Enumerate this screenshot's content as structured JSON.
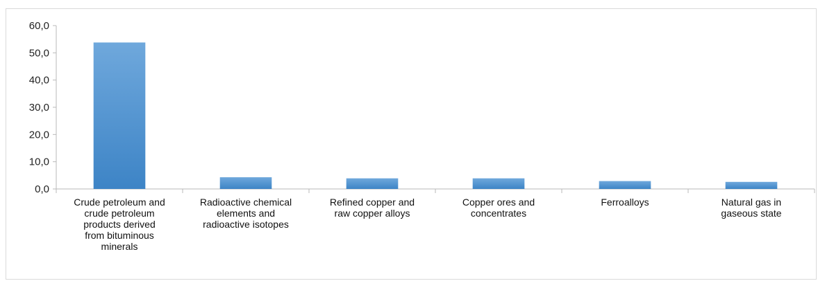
{
  "colors": {
    "bar_top": "#6fa8dc",
    "bar_bottom": "#3d84c6",
    "axis": "#b8b8b8"
  },
  "chart_data": {
    "type": "bar",
    "title": "",
    "xlabel": "",
    "ylabel": "",
    "ylim": [
      0,
      60
    ],
    "y_ticks": [
      "0,0",
      "10,0",
      "20,0",
      "30,0",
      "40,0",
      "50,0",
      "60,0"
    ],
    "categories": [
      "Crude petroleum and crude petroleum products derived from bituminous minerals",
      "Radioactive chemical elements and radioactive isotopes",
      "Refined copper and raw copper alloys",
      "Copper ores and concentrates",
      "Ferroalloys",
      "Natural gas in gaseous state"
    ],
    "category_lines": [
      [
        "Crude petroleum and",
        "crude petroleum",
        "products derived",
        "from bituminous",
        "minerals"
      ],
      [
        "Radioactive chemical",
        "elements and",
        "radioactive isotopes"
      ],
      [
        "Refined copper and",
        "raw copper alloys"
      ],
      [
        "Copper ores and",
        "concentrates"
      ],
      [
        "Ferroalloys"
      ],
      [
        "Natural gas in",
        "gaseous state"
      ]
    ],
    "values": [
      53.8,
      4.3,
      3.9,
      3.9,
      2.9,
      2.6
    ],
    "grid": false,
    "legend": "none"
  }
}
